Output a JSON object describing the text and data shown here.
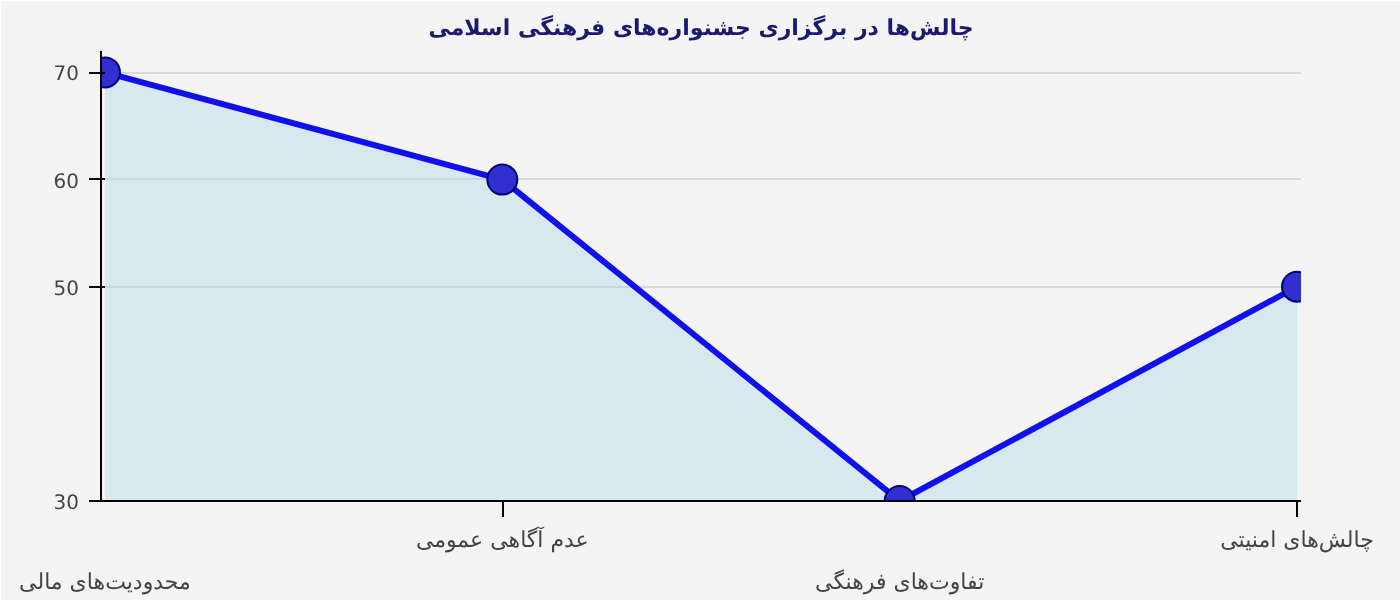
{
  "chart_data": {
    "type": "area",
    "title": "چالش‌ها در برگزاری جشنواره‌های فرهنگی اسلامی",
    "categories": [
      "محدودیت‌های مالی",
      "عدم آگاهی عمومی",
      "تفاوت‌های فرهنگی",
      "چالش‌های امنیتی"
    ],
    "series": [
      {
        "color": "#1010ee",
        "values": [
          70,
          60,
          30,
          50
        ]
      }
    ],
    "ylim": [
      30,
      72
    ],
    "yticks": [
      30,
      50,
      60,
      70
    ],
    "grid": "y",
    "marker": "circle"
  }
}
